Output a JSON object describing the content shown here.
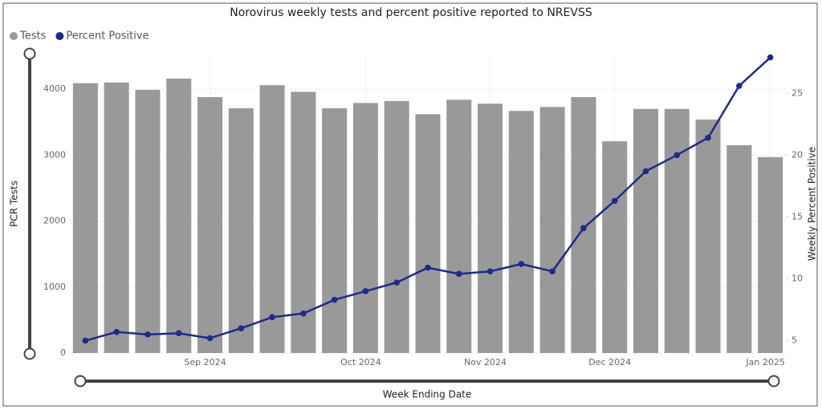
{
  "chart_data": {
    "type": "bar",
    "title": "Norovirus weekly tests and percent positive reported to NREVSS",
    "x_label": "Week Ending Date",
    "y_label": "PCR Tests",
    "y2_label": "Weekly Percent Positive",
    "categories": [
      null,
      null,
      null,
      null,
      "Sep 2024",
      null,
      null,
      null,
      null,
      "Oct 2024",
      null,
      null,
      null,
      "Nov 2024",
      null,
      null,
      null,
      "Dec 2024",
      null,
      null,
      null,
      null,
      "Jan 2025"
    ],
    "series": [
      {
        "name": "Tests",
        "type": "bar",
        "color": "#999999",
        "values": [
          4090,
          4100,
          3990,
          4160,
          3880,
          3710,
          4060,
          3960,
          3710,
          3790,
          3820,
          3620,
          3840,
          3780,
          3670,
          3730,
          3880,
          3210,
          3700,
          3700,
          3540,
          3150,
          2970
        ]
      },
      {
        "name": "Percent Positive",
        "type": "line",
        "color": "#1f2a8a",
        "axis": "y2",
        "values": [
          5.0,
          5.7,
          5.5,
          5.6,
          5.2,
          6.0,
          6.9,
          7.2,
          8.3,
          9.0,
          9.7,
          10.9,
          10.4,
          10.6,
          11.2,
          10.6,
          14.1,
          16.3,
          18.7,
          20.0,
          21.4,
          25.6,
          27.9
        ]
      }
    ],
    "ylim": [
      0,
      4500
    ],
    "yticks": [
      0,
      1000,
      2000,
      3000,
      4000
    ],
    "y2lim": [
      4,
      28
    ],
    "y2ticks": [
      5,
      10,
      15,
      20,
      25
    ],
    "grid": true,
    "legend": "top-left"
  }
}
